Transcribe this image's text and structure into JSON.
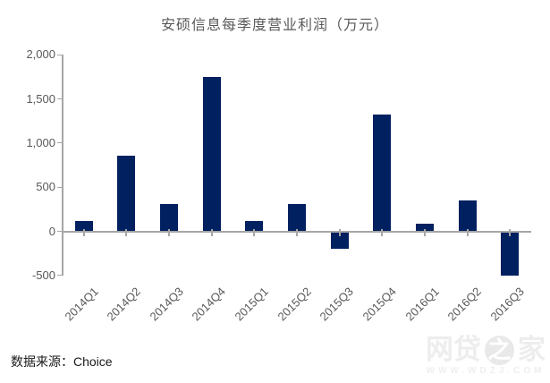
{
  "title": "安硕信息每季度营业利润（万元）",
  "source_label": "数据来源：Choice",
  "watermark": {
    "part1": "网贷",
    "part2": "之",
    "part3": "家",
    "url": "WWW.WDZJ.COM"
  },
  "colors": {
    "bar": "#002060",
    "axis": "#a6a6a6",
    "label": "#595959",
    "title": "#595959"
  },
  "chart_data": {
    "type": "bar",
    "title": "安硕信息每季度营业利润（万元）",
    "categories": [
      "2014Q1",
      "2014Q2",
      "2014Q3",
      "2014Q4",
      "2015Q1",
      "2015Q2",
      "2015Q3",
      "2015Q4",
      "2016Q1",
      "2016Q2",
      "2016Q3"
    ],
    "values": [
      115,
      860,
      310,
      1750,
      120,
      310,
      -195,
      1320,
      90,
      350,
      -500
    ],
    "xlabel": "",
    "ylabel": "",
    "ylim": [
      -500,
      2000
    ],
    "ytick_values": [
      2000,
      1500,
      1000,
      500,
      0,
      -500
    ],
    "ytick_labels": [
      "2,000",
      "1,500",
      "1,000",
      "500",
      "0",
      "-500"
    ],
    "grid": false,
    "legend": "none",
    "x_label_rotation_deg": 45
  }
}
